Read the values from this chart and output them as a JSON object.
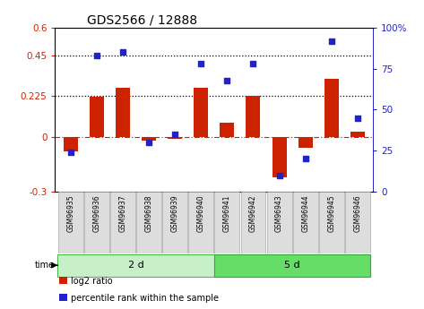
{
  "title": "GDS2566 / 12888",
  "samples": [
    "GSM96935",
    "GSM96936",
    "GSM96937",
    "GSM96938",
    "GSM96939",
    "GSM96940",
    "GSM96941",
    "GSM96942",
    "GSM96943",
    "GSM96944",
    "GSM96945",
    "GSM96946"
  ],
  "log2_ratio": [
    -0.08,
    0.22,
    0.27,
    -0.02,
    -0.01,
    0.27,
    0.08,
    0.225,
    -0.22,
    -0.06,
    0.32,
    0.03
  ],
  "percentile_rank": [
    24,
    83,
    85,
    30,
    35,
    78,
    68,
    78,
    10,
    20,
    92,
    45
  ],
  "groups": [
    {
      "label": "2 d",
      "start": 0,
      "end": 6,
      "color": "#C8F0C8",
      "edge": "#44BB44"
    },
    {
      "label": "5 d",
      "start": 6,
      "end": 12,
      "color": "#66DD66",
      "edge": "#33AA33"
    }
  ],
  "bar_color": "#CC2200",
  "dot_color": "#2222CC",
  "ylim_left": [
    -0.3,
    0.6
  ],
  "ylim_right": [
    0,
    100
  ],
  "yticks_left": [
    -0.3,
    0.0,
    0.225,
    0.45,
    0.6
  ],
  "ytick_labels_left": [
    "-0.3",
    "0",
    "0.225",
    "0.45",
    "0.6"
  ],
  "yticks_right": [
    0,
    25,
    50,
    75,
    100
  ],
  "ytick_labels_right": [
    "0",
    "25",
    "50",
    "75",
    "100%"
  ],
  "hlines": [
    0.45,
    0.225
  ],
  "zero_line_y": 0.0,
  "bar_width": 0.55,
  "legend_items": [
    {
      "label": "log2 ratio",
      "color": "#CC2200"
    },
    {
      "label": "percentile rank within the sample",
      "color": "#2222CC"
    }
  ],
  "background_color": "#FFFFFF",
  "sample_box_color": "#DDDDDD",
  "sample_box_edge": "#AAAAAA"
}
